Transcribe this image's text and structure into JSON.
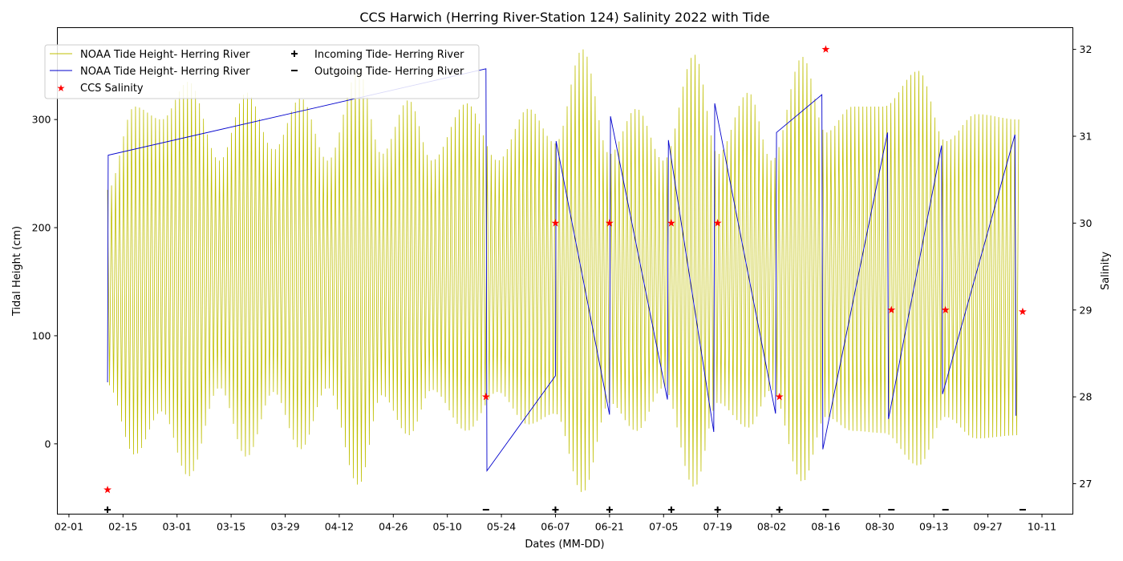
{
  "chart_data": {
    "type": "line",
    "title": "CCS Harwich (Herring River-Station 124) Salinity 2022 with Tide",
    "xlabel": "Dates (MM-DD)",
    "ylabel": "Tidal Height (cm)",
    "ylabel_right": "Salinity",
    "x_axis": {
      "type": "date",
      "range": [
        "2022-01-29",
        "2022-10-19"
      ],
      "tick_labels": [
        "02-01",
        "02-15",
        "03-01",
        "03-15",
        "03-29",
        "04-12",
        "04-26",
        "05-10",
        "05-24",
        "06-07",
        "06-21",
        "07-05",
        "07-19",
        "08-02",
        "08-16",
        "08-30",
        "09-13",
        "09-27",
        "10-11"
      ],
      "tick_dates": [
        "2022-02-01",
        "2022-02-15",
        "2022-03-01",
        "2022-03-15",
        "2022-03-29",
        "2022-04-12",
        "2022-04-26",
        "2022-05-10",
        "2022-05-24",
        "2022-06-07",
        "2022-06-21",
        "2022-07-05",
        "2022-07-19",
        "2022-08-02",
        "2022-08-16",
        "2022-08-30",
        "2022-09-13",
        "2022-09-27",
        "2022-10-11"
      ]
    },
    "y_left": {
      "range": [
        -65,
        385
      ],
      "ticks": [
        0,
        100,
        200,
        300
      ]
    },
    "y_right": {
      "range": [
        26.65,
        32.25
      ],
      "ticks": [
        27,
        28,
        29,
        30,
        31,
        32
      ]
    },
    "grid": false,
    "legend": {
      "placement": "top-left",
      "columns": 2
    },
    "series": [
      {
        "name": "NOAA Tide Height- Herring River",
        "kind": "tide-envelope",
        "color": "#bfbf00",
        "axis": "left",
        "start": "2022-02-11",
        "end": "2022-10-05",
        "high_envelope": [
          [
            "2022-02-11",
            235
          ],
          [
            "2022-02-18",
            312
          ],
          [
            "2022-02-25",
            300
          ],
          [
            "2022-03-04",
            335
          ],
          [
            "2022-03-12",
            262
          ],
          [
            "2022-03-19",
            325
          ],
          [
            "2022-03-26",
            272
          ],
          [
            "2022-04-02",
            320
          ],
          [
            "2022-04-09",
            262
          ],
          [
            "2022-04-17",
            345
          ],
          [
            "2022-04-23",
            268
          ],
          [
            "2022-04-30",
            318
          ],
          [
            "2022-05-06",
            262
          ],
          [
            "2022-05-15",
            315
          ],
          [
            "2022-05-23",
            262
          ],
          [
            "2022-05-31",
            310
          ],
          [
            "2022-06-07",
            278
          ],
          [
            "2022-06-14",
            365
          ],
          [
            "2022-06-21",
            268
          ],
          [
            "2022-06-28",
            310
          ],
          [
            "2022-07-05",
            262
          ],
          [
            "2022-07-13",
            360
          ],
          [
            "2022-07-19",
            268
          ],
          [
            "2022-07-27",
            325
          ],
          [
            "2022-08-02",
            262
          ],
          [
            "2022-08-10",
            358
          ],
          [
            "2022-08-16",
            288
          ],
          [
            "2022-08-23",
            312
          ],
          [
            "2022-08-31",
            312
          ],
          [
            "2022-09-09",
            345
          ],
          [
            "2022-09-16",
            280
          ],
          [
            "2022-09-24",
            305
          ],
          [
            "2022-10-05",
            300
          ]
        ],
        "low_envelope": [
          [
            "2022-02-11",
            55
          ],
          [
            "2022-02-18",
            -10
          ],
          [
            "2022-02-25",
            30
          ],
          [
            "2022-03-04",
            -30
          ],
          [
            "2022-03-12",
            52
          ],
          [
            "2022-03-19",
            -12
          ],
          [
            "2022-03-26",
            48
          ],
          [
            "2022-04-02",
            -5
          ],
          [
            "2022-04-09",
            52
          ],
          [
            "2022-04-17",
            -38
          ],
          [
            "2022-04-23",
            45
          ],
          [
            "2022-04-30",
            8
          ],
          [
            "2022-05-06",
            50
          ],
          [
            "2022-05-15",
            12
          ],
          [
            "2022-05-23",
            48
          ],
          [
            "2022-05-31",
            18
          ],
          [
            "2022-06-07",
            28
          ],
          [
            "2022-06-14",
            -45
          ],
          [
            "2022-06-21",
            38
          ],
          [
            "2022-06-28",
            12
          ],
          [
            "2022-07-05",
            52
          ],
          [
            "2022-07-13",
            -40
          ],
          [
            "2022-07-19",
            38
          ],
          [
            "2022-07-27",
            15
          ],
          [
            "2022-08-02",
            50
          ],
          [
            "2022-08-10",
            -35
          ],
          [
            "2022-08-16",
            25
          ],
          [
            "2022-08-23",
            12
          ],
          [
            "2022-08-31",
            10
          ],
          [
            "2022-09-09",
            -20
          ],
          [
            "2022-09-16",
            25
          ],
          [
            "2022-09-24",
            5
          ],
          [
            "2022-10-05",
            8
          ]
        ]
      },
      {
        "name": "NOAA Tide Height- Herring River",
        "kind": "line",
        "color": "#0000cc",
        "axis": "left",
        "points": [
          [
            "2022-02-11",
            57
          ],
          [
            "2022-02-11T04",
            267
          ],
          [
            "2022-05-20",
            347
          ],
          [
            "2022-05-20T06",
            -25
          ],
          [
            "2022-06-07",
            63
          ],
          [
            "2022-06-07T04",
            280
          ],
          [
            "2022-06-21",
            27
          ],
          [
            "2022-06-21T06",
            303
          ],
          [
            "2022-07-06",
            41
          ],
          [
            "2022-07-06T06",
            281
          ],
          [
            "2022-07-18",
            11
          ],
          [
            "2022-07-18T06",
            315
          ],
          [
            "2022-08-03",
            28
          ],
          [
            "2022-08-03T06",
            288
          ],
          [
            "2022-08-15",
            323
          ],
          [
            "2022-08-15T06",
            -5
          ],
          [
            "2022-09-01",
            288
          ],
          [
            "2022-09-01T06",
            23
          ],
          [
            "2022-09-15",
            276
          ],
          [
            "2022-09-15T06",
            46
          ],
          [
            "2022-10-04",
            286
          ],
          [
            "2022-10-04T06",
            26
          ]
        ]
      },
      {
        "name": "CCS Salinity",
        "kind": "scatter",
        "color": "#ff0000",
        "axis": "right",
        "points": [
          [
            "2022-02-11",
            26.93
          ],
          [
            "2022-05-20",
            28.0
          ],
          [
            "2022-06-07",
            30.0
          ],
          [
            "2022-06-21",
            30.0
          ],
          [
            "2022-07-07",
            30.0
          ],
          [
            "2022-07-19",
            30.0
          ],
          [
            "2022-08-04",
            28.0
          ],
          [
            "2022-08-16",
            32.0
          ],
          [
            "2022-09-02",
            29.0
          ],
          [
            "2022-09-16",
            29.0
          ],
          [
            "2022-10-06",
            28.98
          ]
        ]
      },
      {
        "name": "Incoming Tide- Herring River",
        "kind": "marker",
        "marker": "+",
        "color": "#000000",
        "dates": [
          "2022-02-11",
          "2022-06-07",
          "2022-06-21",
          "2022-07-07",
          "2022-07-19",
          "2022-08-04"
        ]
      },
      {
        "name": "Outgoing Tide- Herring River",
        "kind": "marker",
        "marker": "_",
        "color": "#000000",
        "dates": [
          "2022-05-20",
          "2022-08-16",
          "2022-09-02",
          "2022-09-16",
          "2022-10-06"
        ]
      }
    ]
  }
}
